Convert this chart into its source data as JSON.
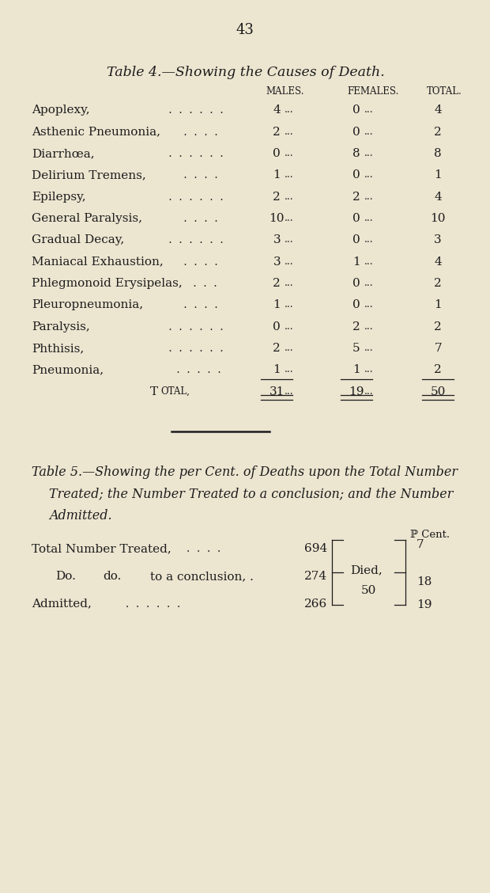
{
  "bg_color": "#ece5d0",
  "text_color": "#1c1c1c",
  "page_number": "43",
  "table4_title": "Table 4.—Showing the Causes of Death.",
  "col_headers": [
    "Males.",
    "Females.",
    "Total."
  ],
  "rows": [
    {
      "cause": "Apoplexy,",
      "males": "4",
      "females": "0",
      "total": "4"
    },
    {
      "cause": "Asthenic Pneumonia,",
      "males": "2",
      "females": "0",
      "total": "2"
    },
    {
      "cause": "Diarrhœa,",
      "males": "0",
      "females": "8",
      "total": "8"
    },
    {
      "cause": "Delirium Tremens,",
      "males": "1",
      "females": "0",
      "total": "1"
    },
    {
      "cause": "Epilepsy,",
      "males": "2",
      "females": "2",
      "total": "4"
    },
    {
      "cause": "General Paralysis,",
      "males": "10",
      "females": "0",
      "total": "10"
    },
    {
      "cause": "Gradual Decay,",
      "males": "3",
      "females": "0",
      "total": "3"
    },
    {
      "cause": "Maniacal Exhaustion,",
      "males": "3",
      "females": "1",
      "total": "4"
    },
    {
      "cause": "Phlegmonoid Erysipelas,",
      "males": "2",
      "females": "0",
      "total": "2"
    },
    {
      "cause": "Pleuropneumonia,",
      "males": "1",
      "females": "0",
      "total": "1"
    },
    {
      "cause": "Paralysis,",
      "males": "0",
      "females": "2",
      "total": "2"
    },
    {
      "cause": "Phthisis,",
      "males": "2",
      "females": "5",
      "total": "7"
    },
    {
      "cause": "Pneumonia,",
      "males": "1",
      "females": "1",
      "total": "2"
    }
  ],
  "total_label": "Total,",
  "total_males": "31",
  "total_females": "19",
  "total_total": "50",
  "table5_line1": "Table 5.—Showing the per Cent. of Deaths upon the Total Number",
  "table5_line2": "Treated; the Number Treated to a conclusion; and the Number",
  "table5_line3": "Admitted.",
  "pcent_label": "ℙ Cent.",
  "stat_label1": "Total Number Treated,",
  "stat_label2": "Do.",
  "stat_label2b": "do.",
  "stat_label2c": "to a conclusion, .",
  "stat_label3": "Admitted,",
  "stat_val1": "694",
  "stat_val2": "274",
  "stat_val3": "266",
  "died_label": "Died,",
  "died_val": "50",
  "pct1": "7",
  "pct2": "18",
  "pct3": "19"
}
